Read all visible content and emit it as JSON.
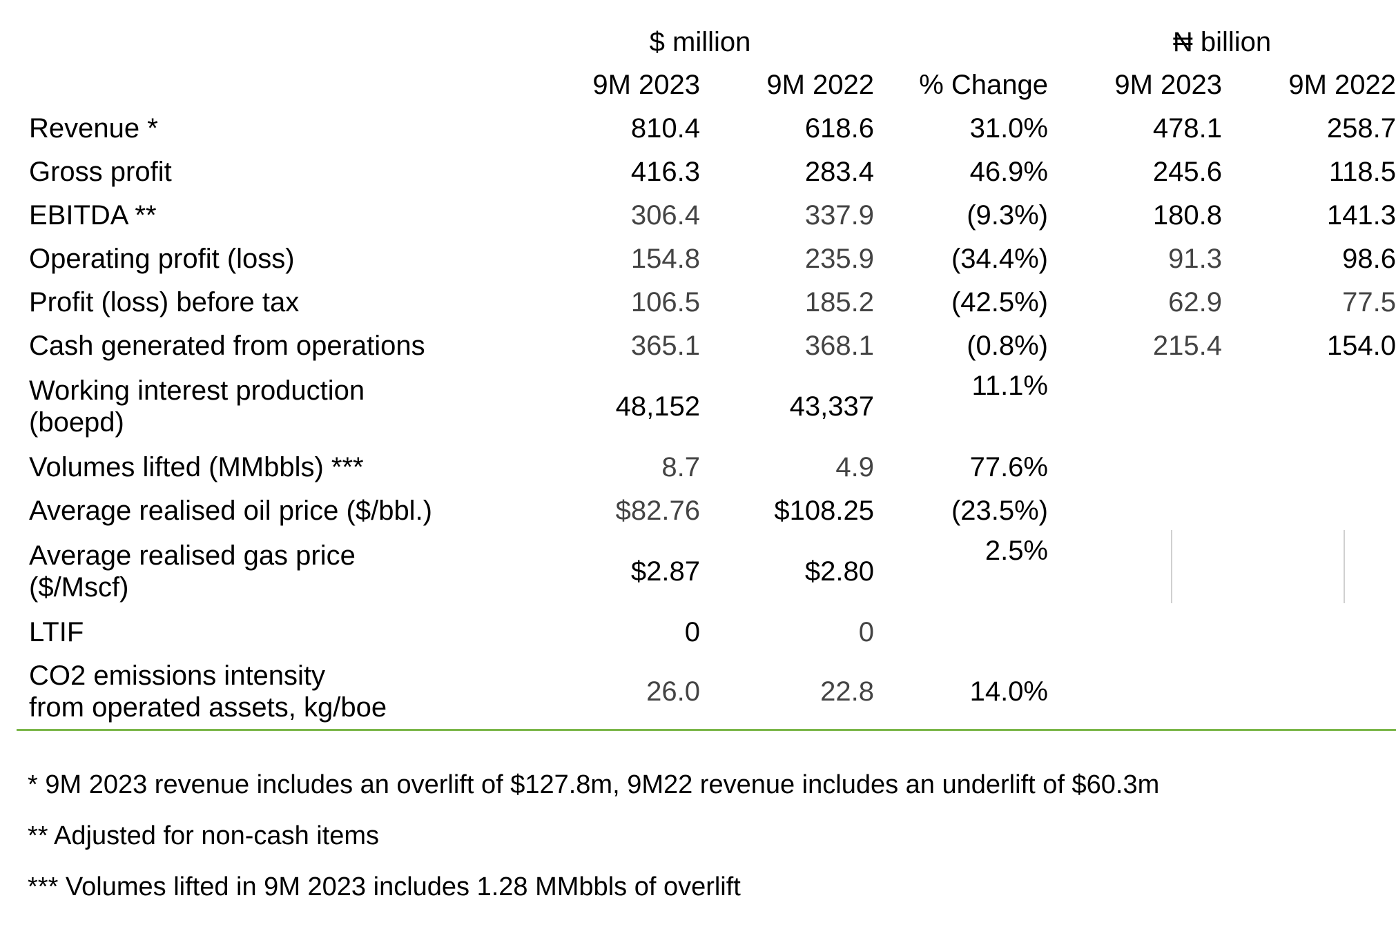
{
  "table": {
    "unit_usd": "$ million",
    "unit_ngn": "₦ billion",
    "columns": [
      "9M 2023",
      "9M 2022",
      "% Change",
      "9M 2023",
      "9M 2022"
    ],
    "rows": [
      {
        "label": "Revenue *",
        "usd_2023": "810.4",
        "usd_2022": "618.6",
        "change": "31.0%",
        "ngn_2023": "478.1",
        "ngn_2022": "258.7"
      },
      {
        "label": "Gross profit",
        "usd_2023": "416.3",
        "usd_2022": "283.4",
        "change": "46.9%",
        "ngn_2023": "245.6",
        "ngn_2022": "118.5"
      },
      {
        "label": "EBITDA **",
        "usd_2023": "306.4",
        "usd_2022": "337.9",
        "change": "(9.3%)",
        "ngn_2023": "180.8",
        "ngn_2022": "141.3"
      },
      {
        "label": "Operating profit (loss)",
        "usd_2023": "154.8",
        "usd_2022": "235.9",
        "change": "(34.4%)",
        "ngn_2023": "91.3",
        "ngn_2022": "98.6"
      },
      {
        "label": "Profit (loss) before tax",
        "usd_2023": "106.5",
        "usd_2022": "185.2",
        "change": "(42.5%)",
        "ngn_2023": "62.9",
        "ngn_2022": "77.5"
      },
      {
        "label": "Cash generated from operations",
        "usd_2023": "365.1",
        "usd_2022": "368.1",
        "change": "(0.8%)",
        "ngn_2023": "215.4",
        "ngn_2022": "154.0"
      },
      {
        "label_line1": "Working interest production",
        "label_line2": "(boepd)",
        "usd_2023": "48,152",
        "usd_2022": "43,337",
        "change": "11.1%"
      },
      {
        "label": "Volumes lifted (MMbbls) ***",
        "usd_2023": "8.7",
        "usd_2022": "4.9",
        "change": "77.6%"
      },
      {
        "label": "Average realised oil price ($/bbl.)",
        "usd_2023": "$82.76",
        "usd_2022": "$108.25",
        "change": "(23.5%)"
      },
      {
        "label_line1": "Average realised gas price",
        "label_line2": "($/Mscf)",
        "usd_2023": "$2.87",
        "usd_2022": "$2.80",
        "change": "2.5%"
      },
      {
        "label": "LTIF",
        "usd_2023": "0",
        "usd_2022": "0"
      },
      {
        "label_line1": "CO2 emissions intensity",
        "label_line2": "from operated assets, kg/boe",
        "usd_2023": "26.0",
        "usd_2022": "22.8",
        "change": "14.0%"
      }
    ]
  },
  "footnotes": [
    "* 9M 2023 revenue includes an overlift of $127.8m, 9M22 revenue includes an underlift of $60.3m",
    "** Adjusted for non-cash items",
    "*** Volumes lifted in 9M 2023 includes 1.28 MMbbls of overlift"
  ],
  "colors": {
    "rule": "#7ab648",
    "divider": "#d0d0d0"
  }
}
